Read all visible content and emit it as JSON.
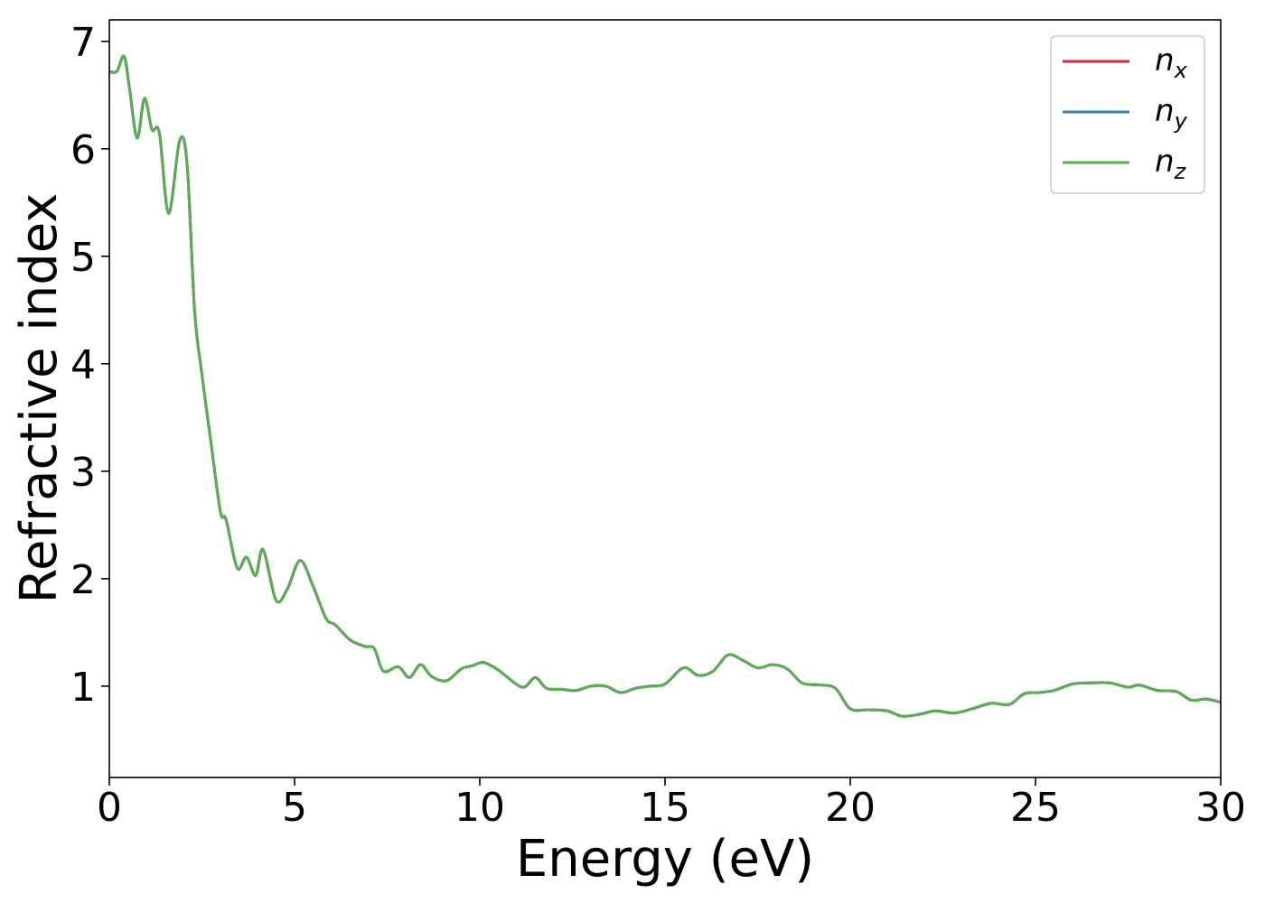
{
  "chart_data": {
    "type": "line",
    "title": "",
    "xlabel": "Energy (eV)",
    "ylabel": "Refractive index",
    "xlim": [
      0,
      30
    ],
    "ylim": [
      0.15,
      7.2
    ],
    "xticks": [
      0,
      5,
      10,
      15,
      20,
      25,
      30
    ],
    "xtick_labels": [
      "0",
      "5",
      "10",
      "15",
      "20",
      "25",
      "30"
    ],
    "yticks": [
      1,
      2,
      3,
      4,
      5,
      6,
      7
    ],
    "ytick_labels": [
      "1",
      "2",
      "3",
      "4",
      "5",
      "6",
      "7"
    ],
    "grid": false,
    "legend_position": "top-right",
    "x": [
      0,
      0.2,
      0.4,
      0.55,
      0.75,
      0.95,
      1.15,
      1.35,
      1.6,
      1.9,
      2.1,
      2.3,
      2.5,
      2.75,
      3.0,
      3.15,
      3.45,
      3.7,
      3.95,
      4.15,
      4.5,
      4.8,
      5.15,
      5.5,
      5.85,
      6.1,
      6.5,
      6.9,
      7.15,
      7.4,
      7.8,
      8.1,
      8.4,
      8.7,
      9.1,
      9.5,
      9.8,
      10.1,
      10.5,
      10.9,
      11.2,
      11.5,
      11.8,
      12.2,
      12.6,
      13.0,
      13.4,
      13.8,
      14.2,
      14.6,
      15.0,
      15.5,
      15.9,
      16.3,
      16.7,
      17.1,
      17.5,
      17.9,
      18.3,
      18.7,
      19.2,
      19.6,
      20.0,
      20.5,
      21.0,
      21.4,
      21.9,
      22.3,
      22.8,
      23.3,
      23.8,
      24.3,
      24.7,
      25.1,
      25.5,
      26.0,
      26.5,
      27.0,
      27.5,
      27.8,
      28.3,
      28.8,
      29.2,
      29.6,
      30.0
    ],
    "series": [
      {
        "name": "n_x",
        "label_main": "n",
        "label_sub": "x",
        "color": "#d62728",
        "values": [
          6.72,
          6.72,
          6.86,
          6.55,
          6.1,
          6.47,
          6.18,
          6.15,
          5.4,
          6.08,
          5.85,
          4.5,
          3.9,
          3.25,
          2.62,
          2.55,
          2.1,
          2.2,
          2.03,
          2.27,
          1.8,
          1.9,
          2.17,
          1.93,
          1.63,
          1.57,
          1.43,
          1.37,
          1.35,
          1.14,
          1.18,
          1.08,
          1.2,
          1.09,
          1.05,
          1.16,
          1.19,
          1.22,
          1.15,
          1.04,
          0.99,
          1.08,
          0.98,
          0.97,
          0.96,
          1.0,
          1.0,
          0.94,
          0.98,
          1.0,
          1.02,
          1.17,
          1.1,
          1.14,
          1.29,
          1.24,
          1.17,
          1.2,
          1.16,
          1.03,
          1.01,
          0.98,
          0.79,
          0.78,
          0.77,
          0.72,
          0.74,
          0.77,
          0.75,
          0.79,
          0.84,
          0.83,
          0.93,
          0.94,
          0.96,
          1.02,
          1.03,
          1.03,
          0.99,
          1.01,
          0.96,
          0.95,
          0.87,
          0.88,
          0.85
        ]
      },
      {
        "name": "n_y",
        "label_main": "n",
        "label_sub": "y",
        "color": "#3e7db0",
        "values": [
          6.72,
          6.72,
          6.86,
          6.55,
          6.1,
          6.47,
          6.18,
          6.15,
          5.4,
          6.08,
          5.85,
          4.5,
          3.9,
          3.25,
          2.62,
          2.55,
          2.1,
          2.2,
          2.03,
          2.27,
          1.8,
          1.9,
          2.17,
          1.93,
          1.63,
          1.57,
          1.43,
          1.37,
          1.35,
          1.14,
          1.18,
          1.08,
          1.2,
          1.09,
          1.05,
          1.16,
          1.19,
          1.22,
          1.15,
          1.04,
          0.99,
          1.08,
          0.98,
          0.97,
          0.96,
          1.0,
          1.0,
          0.94,
          0.98,
          1.0,
          1.02,
          1.17,
          1.1,
          1.14,
          1.29,
          1.24,
          1.17,
          1.2,
          1.16,
          1.03,
          1.01,
          0.98,
          0.79,
          0.78,
          0.77,
          0.72,
          0.74,
          0.77,
          0.75,
          0.79,
          0.84,
          0.83,
          0.93,
          0.94,
          0.96,
          1.02,
          1.03,
          1.03,
          0.99,
          1.01,
          0.96,
          0.95,
          0.87,
          0.88,
          0.85
        ]
      },
      {
        "name": "n_z",
        "label_main": "n",
        "label_sub": "z",
        "color": "#5aad50",
        "values": [
          6.72,
          6.72,
          6.86,
          6.55,
          6.1,
          6.47,
          6.18,
          6.15,
          5.4,
          6.08,
          5.85,
          4.5,
          3.9,
          3.25,
          2.62,
          2.55,
          2.1,
          2.2,
          2.03,
          2.27,
          1.8,
          1.9,
          2.17,
          1.93,
          1.63,
          1.57,
          1.43,
          1.37,
          1.35,
          1.14,
          1.18,
          1.08,
          1.2,
          1.09,
          1.05,
          1.16,
          1.19,
          1.22,
          1.15,
          1.04,
          0.99,
          1.08,
          0.98,
          0.97,
          0.96,
          1.0,
          1.0,
          0.94,
          0.98,
          1.0,
          1.02,
          1.17,
          1.1,
          1.14,
          1.29,
          1.24,
          1.17,
          1.2,
          1.16,
          1.03,
          1.01,
          0.98,
          0.79,
          0.78,
          0.77,
          0.72,
          0.74,
          0.77,
          0.75,
          0.79,
          0.84,
          0.83,
          0.93,
          0.94,
          0.96,
          1.02,
          1.03,
          1.03,
          0.99,
          1.01,
          0.96,
          0.95,
          0.87,
          0.88,
          0.85
        ]
      }
    ]
  }
}
